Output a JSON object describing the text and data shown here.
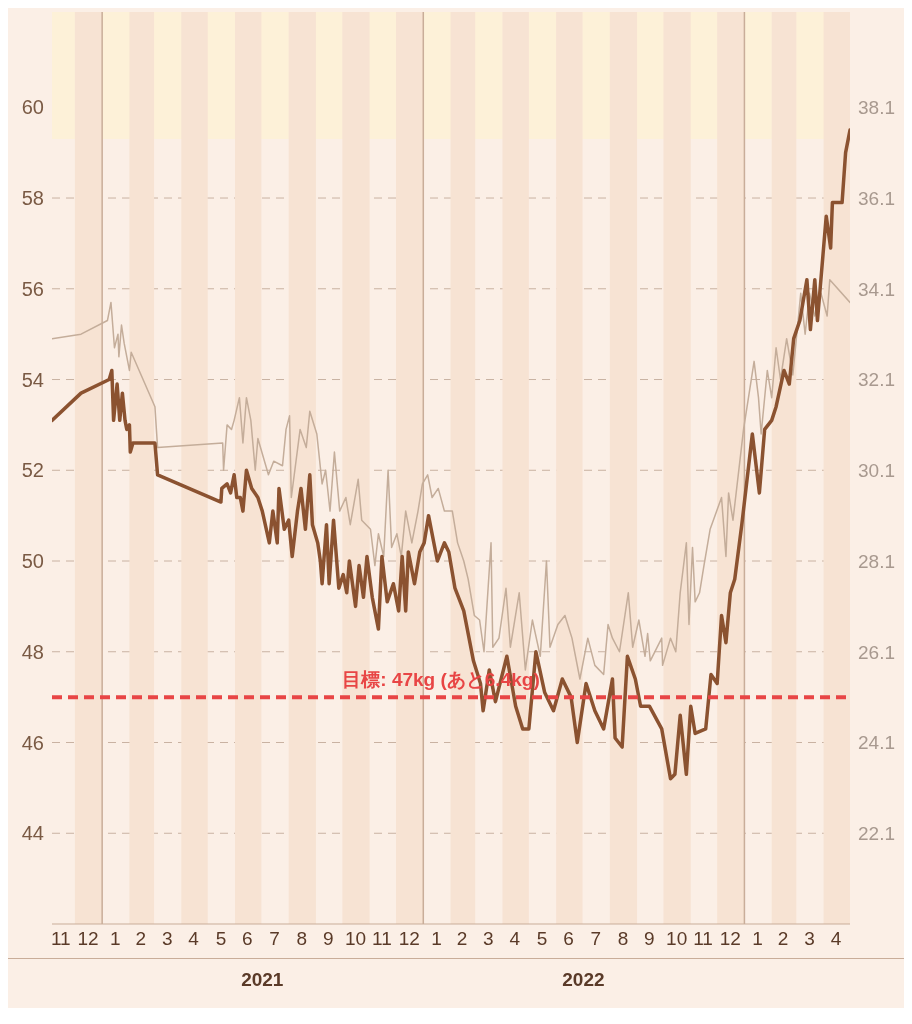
{
  "chart_data": {
    "type": "line",
    "xlim": [
      "2020-11-05",
      "2023-05-01"
    ],
    "xticks": [
      {
        "value": "2020-11-15",
        "label": "11"
      },
      {
        "value": "2020-12-16",
        "label": "12"
      },
      {
        "value": "2021-01-16",
        "label": "1"
      },
      {
        "value": "2021-02-14",
        "label": "2"
      },
      {
        "value": "2021-03-16",
        "label": "3"
      },
      {
        "value": "2021-04-15",
        "label": "4"
      },
      {
        "value": "2021-05-16",
        "label": "5"
      },
      {
        "value": "2021-06-15",
        "label": "6"
      },
      {
        "value": "2021-07-16",
        "label": "7"
      },
      {
        "value": "2021-08-16",
        "label": "8"
      },
      {
        "value": "2021-09-15",
        "label": "9"
      },
      {
        "value": "2021-10-16",
        "label": "10"
      },
      {
        "value": "2021-11-15",
        "label": "11"
      },
      {
        "value": "2021-12-16",
        "label": "12"
      },
      {
        "value": "2022-01-16",
        "label": "1"
      },
      {
        "value": "2022-02-14",
        "label": "2"
      },
      {
        "value": "2022-03-16",
        "label": "3"
      },
      {
        "value": "2022-04-15",
        "label": "4"
      },
      {
        "value": "2022-05-16",
        "label": "5"
      },
      {
        "value": "2022-06-15",
        "label": "6"
      },
      {
        "value": "2022-07-16",
        "label": "7"
      },
      {
        "value": "2022-08-16",
        "label": "8"
      },
      {
        "value": "2022-09-15",
        "label": "9"
      },
      {
        "value": "2022-10-16",
        "label": "10"
      },
      {
        "value": "2022-11-15",
        "label": "11"
      },
      {
        "value": "2022-12-16",
        "label": "12"
      },
      {
        "value": "2023-01-16",
        "label": "1"
      },
      {
        "value": "2023-02-14",
        "label": "2"
      },
      {
        "value": "2023-03-16",
        "label": "3"
      },
      {
        "value": "2023-04-15",
        "label": "4"
      }
    ],
    "x2lim": [
      "2020-11-05",
      "2023-05-01"
    ],
    "x2ticks": [
      {
        "value": "2021-07-02",
        "label": "2021"
      },
      {
        "value": "2022-07-02",
        "label": "2022"
      }
    ],
    "ylim": [
      42,
      62.1
    ],
    "yticks": [
      44,
      46,
      48,
      50,
      52,
      54,
      56,
      58,
      60
    ],
    "y2lim": [
      20.1,
      40.2
    ],
    "y2ticks": [
      22.1,
      24.1,
      26.1,
      28.1,
      30.1,
      32.1,
      34.1,
      36.1,
      38.1
    ],
    "grid": "y",
    "legend": false,
    "marker": "none",
    "line_style": "solid",
    "series": [
      {
        "color": "#c4ad9a",
        "axis": "y2",
        "x": [
          "2020-11-05",
          "2020-12-08",
          "2021-01-07",
          "2021-01-11",
          "2021-01-15",
          "2021-01-19",
          "2021-01-20",
          "2021-01-23",
          "2021-01-26",
          "2021-02-01",
          "2021-02-03",
          "2021-03-02",
          "2021-03-05",
          "2021-05-18",
          "2021-05-19",
          "2021-05-23",
          "2021-05-28",
          "2021-05-31",
          "2021-06-06",
          "2021-06-10",
          "2021-06-14",
          "2021-06-19",
          "2021-06-24",
          "2021-06-27",
          "2021-07-09",
          "2021-07-15",
          "2021-07-25",
          "2021-07-29",
          "2021-08-02",
          "2021-08-04",
          "2021-08-14",
          "2021-08-21",
          "2021-08-25",
          "2021-09-02",
          "2021-09-08",
          "2021-09-12",
          "2021-09-17",
          "2021-09-22",
          "2021-09-28",
          "2021-10-05",
          "2021-10-10",
          "2021-10-19",
          "2021-10-23",
          "2021-11-02",
          "2021-11-07",
          "2021-11-11",
          "2021-11-17",
          "2021-11-22",
          "2021-11-26",
          "2021-12-02",
          "2021-12-07",
          "2021-12-12",
          "2021-12-19",
          "2021-12-26",
          "2021-12-31",
          "2022-01-06",
          "2022-01-11",
          "2022-01-18",
          "2022-01-25",
          "2022-02-03",
          "2022-02-09",
          "2022-02-16",
          "2022-02-21",
          "2022-02-28",
          "2022-03-06",
          "2022-03-11",
          "2022-03-19",
          "2022-03-21",
          "2022-03-28",
          "2022-04-05",
          "2022-04-10",
          "2022-04-20",
          "2022-04-27",
          "2022-05-05",
          "2022-05-14",
          "2022-05-21",
          "2022-05-25",
          "2022-06-03",
          "2022-06-11",
          "2022-06-19",
          "2022-06-28",
          "2022-07-07",
          "2022-07-15",
          "2022-07-25",
          "2022-07-30",
          "2022-08-04",
          "2022-08-12",
          "2022-08-22",
          "2022-08-27",
          "2022-09-03",
          "2022-09-10",
          "2022-09-13",
          "2022-09-16",
          "2022-09-29",
          "2022-09-30",
          "2022-10-09",
          "2022-10-15",
          "2022-10-20",
          "2022-10-27",
          "2022-10-30",
          "2022-11-03",
          "2022-11-06",
          "2022-11-11",
          "2022-11-16",
          "2022-11-23",
          "2022-12-06",
          "2022-12-11",
          "2022-12-14",
          "2022-12-19",
          "2022-12-28",
          "2022-12-31",
          "2023-01-12",
          "2023-01-17",
          "2023-01-20",
          "2023-01-27",
          "2023-02-01",
          "2023-02-06",
          "2023-02-11",
          "2023-02-18",
          "2023-02-25",
          "2023-03-06",
          "2023-03-11",
          "2023-03-16",
          "2023-03-22",
          "2023-03-29",
          "2023-04-05",
          "2023-04-08",
          "2023-05-01"
        ],
        "values": [
          33.0,
          33.1,
          33.4,
          33.8,
          32.8,
          33.1,
          32.6,
          33.3,
          32.9,
          32.3,
          32.7,
          31.5,
          30.6,
          30.7,
          30.1,
          31.1,
          31.0,
          31.2,
          31.7,
          30.7,
          31.7,
          31.2,
          30.1,
          30.8,
          30.0,
          30.3,
          30.2,
          31.0,
          31.3,
          29.5,
          31.0,
          30.6,
          31.4,
          30.9,
          29.8,
          30.1,
          29.2,
          30.5,
          29.2,
          29.5,
          28.9,
          29.9,
          29.0,
          28.8,
          28.0,
          28.7,
          28.2,
          30.1,
          28.4,
          28.7,
          28.2,
          29.2,
          28.5,
          29.2,
          29.8,
          30.0,
          29.5,
          29.7,
          29.2,
          29.2,
          28.5,
          28.1,
          27.7,
          26.9,
          26.8,
          26.1,
          28.5,
          26.2,
          26.4,
          27.5,
          26.2,
          27.4,
          25.7,
          26.8,
          26.0,
          28.1,
          26.2,
          26.7,
          26.9,
          26.4,
          25.5,
          26.4,
          25.8,
          25.6,
          26.7,
          26.4,
          26.1,
          27.4,
          26.2,
          26.8,
          26.0,
          26.5,
          25.9,
          26.4,
          25.8,
          26.4,
          26.1,
          27.4,
          28.5,
          26.7,
          28.4,
          27.2,
          27.4,
          28.0,
          28.8,
          29.5,
          28.2,
          29.6,
          29.0,
          30.5,
          31.0,
          32.5,
          31.7,
          30.9,
          32.3,
          31.7,
          32.8,
          32.1,
          33.0,
          32.2,
          34.0,
          33.1,
          34.0,
          33.5,
          34.0,
          33.5,
          34.3,
          33.8
        ]
      },
      {
        "color": "#8b5230",
        "x": [
          "2020-11-05",
          "2020-12-08",
          "2021-01-09",
          "2021-01-12",
          "2021-01-14",
          "2021-01-18",
          "2021-01-21",
          "2021-01-24",
          "2021-01-27",
          "2021-01-29",
          "2021-02-01",
          "2021-02-02",
          "2021-02-05",
          "2021-03-02",
          "2021-03-05",
          "2021-05-16",
          "2021-05-17",
          "2021-05-23",
          "2021-05-27",
          "2021-05-31",
          "2021-06-03",
          "2021-06-07",
          "2021-06-10",
          "2021-06-14",
          "2021-06-20",
          "2021-06-27",
          "2021-07-02",
          "2021-07-10",
          "2021-07-14",
          "2021-07-19",
          "2021-07-21",
          "2021-07-27",
          "2021-08-01",
          "2021-08-05",
          "2021-08-11",
          "2021-08-15",
          "2021-08-20",
          "2021-08-25",
          "2021-08-28",
          "2021-09-03",
          "2021-09-06",
          "2021-09-08",
          "2021-09-13",
          "2021-09-16",
          "2021-09-21",
          "2021-09-27",
          "2021-10-02",
          "2021-10-06",
          "2021-10-09",
          "2021-10-16",
          "2021-10-20",
          "2021-10-25",
          "2021-10-29",
          "2021-11-04",
          "2021-11-11",
          "2021-11-15",
          "2021-11-21",
          "2021-11-28",
          "2021-12-04",
          "2021-12-08",
          "2021-12-12",
          "2021-12-15",
          "2021-12-22",
          "2021-12-28",
          "2022-01-02",
          "2022-01-07",
          "2022-01-13",
          "2022-01-17",
          "2022-01-25",
          "2022-01-30",
          "2022-02-06",
          "2022-02-16",
          "2022-02-22",
          "2022-02-27",
          "2022-03-07",
          "2022-03-10",
          "2022-03-17",
          "2022-03-24",
          "2022-04-06",
          "2022-04-16",
          "2022-04-24",
          "2022-05-01",
          "2022-05-09",
          "2022-05-19",
          "2022-05-29",
          "2022-06-08",
          "2022-06-18",
          "2022-06-25",
          "2022-07-05",
          "2022-07-15",
          "2022-07-25",
          "2022-08-04",
          "2022-08-07",
          "2022-08-15",
          "2022-08-21",
          "2022-08-30",
          "2022-09-05",
          "2022-09-15",
          "2022-09-29",
          "2022-10-09",
          "2022-10-14",
          "2022-10-20",
          "2022-10-27",
          "2022-11-01",
          "2022-11-06",
          "2022-11-18",
          "2022-11-24",
          "2022-12-01",
          "2022-12-06",
          "2022-12-11",
          "2022-12-16",
          "2022-12-21",
          "2022-12-29",
          "2023-01-10",
          "2023-01-18",
          "2023-01-24",
          "2023-02-01",
          "2023-02-06",
          "2023-02-15",
          "2023-02-21",
          "2023-02-26",
          "2023-03-05",
          "2023-03-13",
          "2023-03-17",
          "2023-03-22",
          "2023-03-25",
          "2023-04-04",
          "2023-04-09",
          "2023-04-11",
          "2023-04-22",
          "2023-04-26",
          "2023-05-01"
        ],
        "values": [
          53.1,
          53.7,
          54.0,
          54.2,
          53.1,
          53.9,
          53.1,
          53.7,
          53.1,
          52.9,
          53.0,
          52.4,
          52.6,
          52.6,
          51.9,
          51.3,
          51.6,
          51.7,
          51.5,
          51.9,
          51.4,
          51.4,
          51.1,
          52.0,
          51.6,
          51.4,
          51.1,
          50.4,
          51.1,
          50.4,
          51.6,
          50.7,
          50.9,
          50.1,
          51.1,
          51.6,
          50.7,
          51.9,
          50.8,
          50.4,
          50.0,
          49.5,
          50.8,
          49.5,
          50.9,
          49.4,
          49.7,
          49.3,
          50.0,
          49.0,
          49.9,
          49.2,
          50.1,
          49.2,
          48.5,
          50.1,
          49.1,
          49.5,
          48.9,
          50.1,
          48.9,
          50.2,
          49.5,
          50.2,
          50.4,
          51.0,
          50.4,
          50.0,
          50.4,
          50.2,
          49.4,
          48.9,
          48.3,
          47.8,
          47.3,
          46.7,
          47.6,
          46.9,
          47.9,
          46.8,
          46.3,
          46.3,
          48.0,
          47.1,
          46.7,
          47.4,
          47.0,
          46.0,
          47.3,
          46.7,
          46.3,
          47.4,
          46.1,
          45.9,
          47.9,
          47.4,
          46.8,
          46.8,
          46.3,
          45.2,
          45.3,
          46.6,
          45.3,
          46.8,
          46.2,
          46.3,
          47.5,
          47.3,
          48.8,
          48.2,
          49.3,
          49.6,
          50.8,
          52.8,
          51.5,
          52.9,
          53.1,
          53.4,
          54.2,
          53.9,
          54.9,
          55.3,
          56.2,
          55.1,
          56.2,
          55.3,
          57.6,
          56.9,
          57.9,
          57.9,
          59.0,
          59.5
        ]
      }
    ],
    "ref_lines": [
      {
        "axis": "y",
        "value": 47,
        "label": "目標: 47kg (あと6.4kg)",
        "color": "#e84545",
        "line_style": "dashed"
      },
      {
        "axis": "x",
        "value": "2021-01-01",
        "color": "#c9ad99"
      },
      {
        "axis": "x",
        "value": "2022-01-01",
        "color": "#c9ad99"
      },
      {
        "axis": "x",
        "value": "2023-01-01",
        "color": "#c9ad99"
      }
    ],
    "bands": [
      {
        "axis": "y",
        "from": 59.3,
        "to": 62.1,
        "color": "#fdf1d8"
      },
      {
        "axis": "x",
        "from": "2020-12-01",
        "to": "2021-01-01",
        "color": "#f7e3d3"
      },
      {
        "axis": "x",
        "from": "2021-02-01",
        "to": "2021-03-01",
        "color": "#f7e3d3"
      },
      {
        "axis": "x",
        "from": "2021-04-01",
        "to": "2021-05-01",
        "color": "#f7e3d3"
      },
      {
        "axis": "x",
        "from": "2021-06-01",
        "to": "2021-07-01",
        "color": "#f7e3d3"
      },
      {
        "axis": "x",
        "from": "2021-08-01",
        "to": "2021-09-01",
        "color": "#f7e3d3"
      },
      {
        "axis": "x",
        "from": "2021-10-01",
        "to": "2021-11-01",
        "color": "#f7e3d3"
      },
      {
        "axis": "x",
        "from": "2021-12-01",
        "to": "2022-01-01",
        "color": "#f7e3d3"
      },
      {
        "axis": "x",
        "from": "2022-02-01",
        "to": "2022-03-01",
        "color": "#f7e3d3"
      },
      {
        "axis": "x",
        "from": "2022-04-01",
        "to": "2022-05-01",
        "color": "#f7e3d3"
      },
      {
        "axis": "x",
        "from": "2022-06-01",
        "to": "2022-07-01",
        "color": "#f7e3d3"
      },
      {
        "axis": "x",
        "from": "2022-08-01",
        "to": "2022-09-01",
        "color": "#f7e3d3"
      },
      {
        "axis": "x",
        "from": "2022-10-01",
        "to": "2022-11-01",
        "color": "#f7e3d3"
      },
      {
        "axis": "x",
        "from": "2022-12-01",
        "to": "2023-01-01",
        "color": "#f7e3d3"
      },
      {
        "axis": "x",
        "from": "2023-02-01",
        "to": "2023-03-01",
        "color": "#f7e3d3"
      },
      {
        "axis": "x",
        "from": "2023-04-01",
        "to": "2023-05-01",
        "color": "#f7e3d3"
      }
    ]
  }
}
